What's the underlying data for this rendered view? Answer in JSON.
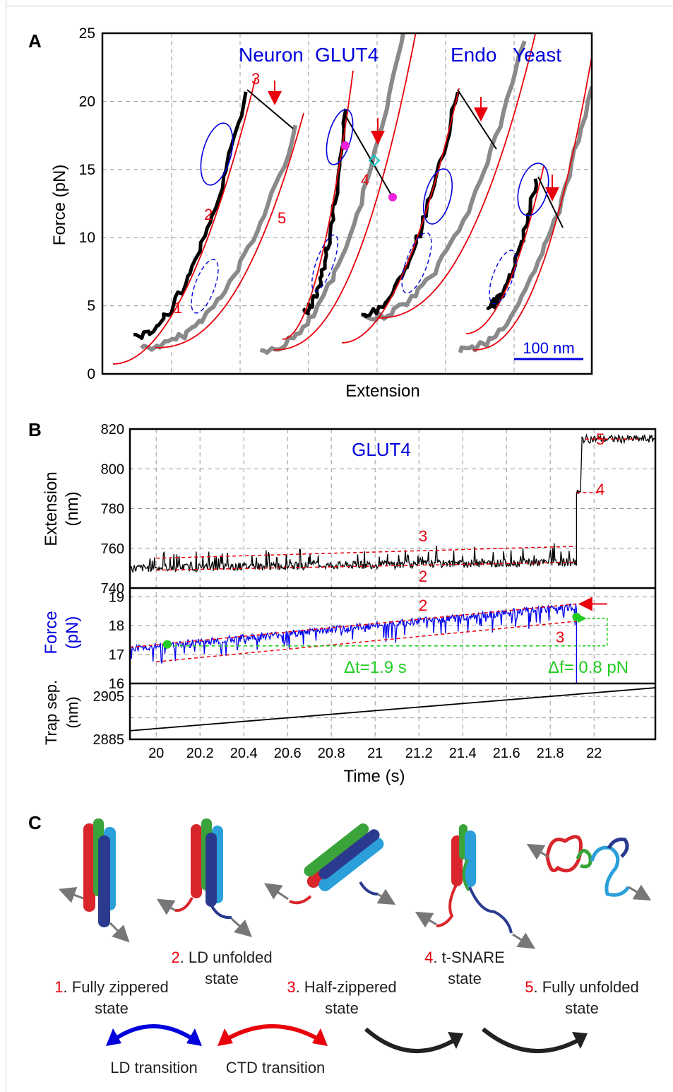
{
  "panels": {
    "A": {
      "letter": "A",
      "xlabel": "Extension",
      "ylabel": "Force (pN)",
      "yticks": [
        "0",
        "5",
        "10",
        "15",
        "20",
        "25"
      ],
      "ylim": [
        0,
        25
      ],
      "scalebar_label": "100 nm",
      "construct_labels": [
        "Neuron",
        "GLUT4",
        "Endo",
        "Yeast"
      ],
      "state_labels": [
        "1",
        "2",
        "3",
        "4",
        "5"
      ]
    },
    "B": {
      "letter": "B",
      "title": "GLUT4",
      "top_ylabel": [
        "Extension",
        "(nm)"
      ],
      "top_yticks": [
        "740",
        "760",
        "780",
        "800",
        "820"
      ],
      "mid_ylabel": [
        "Force",
        "(pN)"
      ],
      "mid_yticks": [
        "16",
        "17",
        "18",
        "19"
      ],
      "bot_ylabel": [
        "Trap sep.",
        "(nm)"
      ],
      "bot_yticks": [
        "2885",
        "2905"
      ],
      "xticks": [
        "20",
        "20.2",
        "20.4",
        "20.6",
        "20.8",
        "21",
        "21.2",
        "21.4",
        "21.6",
        "21.8",
        "22"
      ],
      "xlabel": "Time (s)",
      "dt_label": "Δt=1.9 s",
      "df_label": "Δf= 0.8 pN",
      "state_labels_top": [
        "3",
        "2",
        "4",
        "5"
      ],
      "state_labels_mid": [
        "2",
        "3"
      ]
    },
    "C": {
      "letter": "C",
      "states": [
        {
          "num": "1",
          "line1": ". Fully zippered",
          "line2": "state"
        },
        {
          "num": "2",
          "line1": ". LD unfolded",
          "line2": "state"
        },
        {
          "num": "3",
          "line1": ". Half-zippered",
          "line2": "state"
        },
        {
          "num": "4",
          "line1": ". t-SNARE",
          "line2": "state"
        },
        {
          "num": "5",
          "line1": ". Fully unfolded",
          "line2": "state"
        }
      ],
      "transitions": [
        "LD  transition",
        "CTD  transition"
      ]
    }
  },
  "chart_data": [
    {
      "type": "line",
      "panel": "A",
      "xlabel": "Extension",
      "ylabel": "Force (pN)",
      "ylim": [
        0,
        25
      ],
      "grid": true,
      "series": [
        {
          "name": "Neuron"
        },
        {
          "name": "GLUT4"
        },
        {
          "name": "Endo"
        },
        {
          "name": "Yeast"
        }
      ]
    },
    {
      "type": "line",
      "panel": "B",
      "title": "GLUT4",
      "xlabel": "Time (s)",
      "xlim": [
        19.88,
        22.28
      ],
      "subplots": [
        {
          "ylabel": "Extension (nm)",
          "ylim": [
            740,
            820
          ],
          "series": [
            {
              "x": [
                19.88,
                21.0,
                21.9,
                21.92,
                21.95,
                22.28
              ],
              "y": [
                750,
                752,
                753,
                788,
                815,
                815
              ]
            }
          ]
        },
        {
          "ylabel": "Force (pN)",
          "ylim": [
            16,
            19.3
          ],
          "series": [
            {
              "x": [
                19.88,
                20.05,
                21.0,
                21.9,
                21.92
              ],
              "y": [
                17.2,
                17.3,
                18.0,
                18.7,
                18.3
              ]
            }
          ]
        },
        {
          "ylabel": "Trap sep. (nm)",
          "ylim": [
            2885,
            2911
          ],
          "series": [
            {
              "x": [
                19.88,
                22.28
              ],
              "y": [
                2889,
                2909
              ]
            }
          ]
        }
      ],
      "annotations": {
        "dt": "Δt=1.9 s",
        "df": "Δf= 0.8 pN"
      }
    }
  ],
  "colors": {
    "red": "#e8000b",
    "blue": "#0000dd",
    "green": "#22cc22",
    "gray": "#888888",
    "helix_red": "#d8262c",
    "helix_green": "#3aa33a",
    "helix_lightblue": "#2b9fd9",
    "helix_darkblue": "#2a3b8f"
  }
}
